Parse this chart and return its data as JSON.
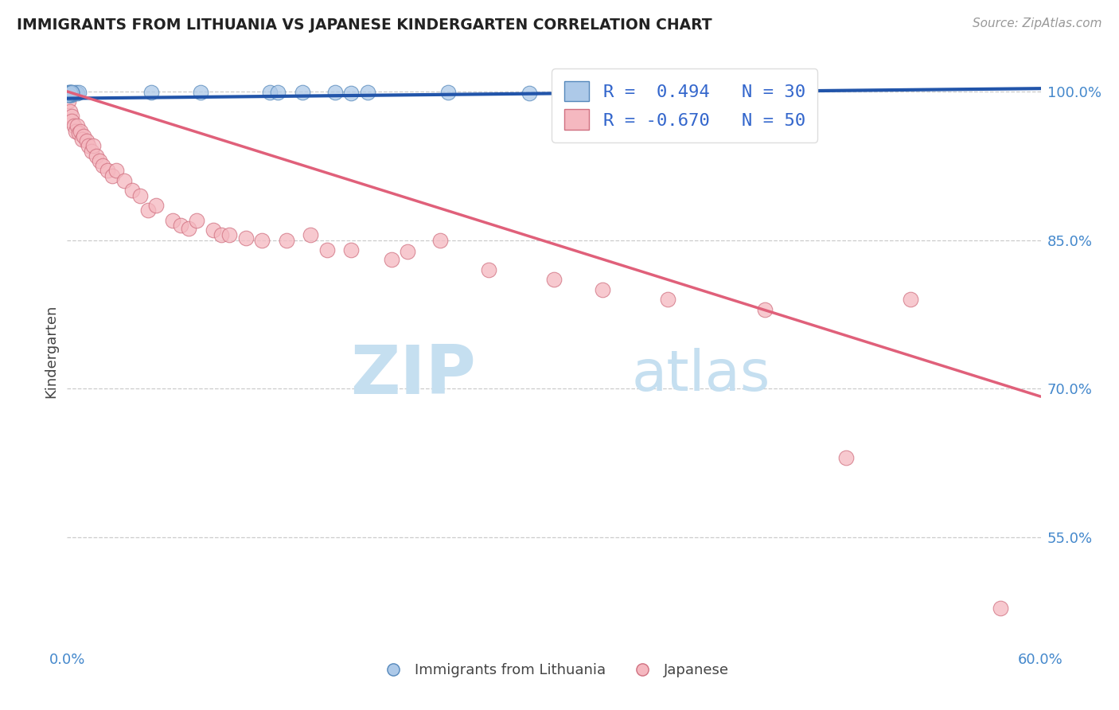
{
  "title": "IMMIGRANTS FROM LITHUANIA VS JAPANESE KINDERGARTEN CORRELATION CHART",
  "source_text": "Source: ZipAtlas.com",
  "ylabel": "Kindergarten",
  "x_min": 0.0,
  "x_max": 0.6,
  "y_min": 0.44,
  "y_max": 1.035,
  "y_ticks": [
    0.55,
    0.7,
    0.85,
    1.0
  ],
  "y_tick_labels": [
    "55.0%",
    "70.0%",
    "85.0%",
    "100.0%"
  ],
  "x_ticks": [
    0.0,
    0.1,
    0.2,
    0.3,
    0.4,
    0.5,
    0.6
  ],
  "x_tick_labels": [
    "0.0%",
    "",
    "",
    "",
    "",
    "",
    "60.0%"
  ],
  "legend_r1": "R =  0.494   N = 30",
  "legend_r2": "R = -0.670   N = 50",
  "series1_color": "#adc9e8",
  "series1_edge": "#5588bb",
  "series2_color": "#f5b8c0",
  "series2_edge": "#d07080",
  "trendline1_color": "#2255aa",
  "trendline2_color": "#e0607a",
  "watermark_zip": "ZIP",
  "watermark_atlas": "atlas",
  "watermark_color_zip": "#c5dff0",
  "watermark_color_atlas": "#c5dff0",
  "background_color": "#ffffff",
  "blue_scatter_x": [
    0.001,
    0.001,
    0.002,
    0.002,
    0.003,
    0.003,
    0.004,
    0.005,
    0.006,
    0.007,
    0.002,
    0.001,
    0.003,
    0.002,
    0.001,
    0.003,
    0.002,
    0.001,
    0.002,
    0.003,
    0.052,
    0.082,
    0.125,
    0.175,
    0.235,
    0.285,
    0.185,
    0.165,
    0.145,
    0.13
  ],
  "blue_scatter_y": [
    0.999,
    0.998,
    0.999,
    0.997,
    0.998,
    0.997,
    0.998,
    0.999,
    0.998,
    0.999,
    0.997,
    0.998,
    0.999,
    0.998,
    0.997,
    0.998,
    0.999,
    0.997,
    0.998,
    0.999,
    0.999,
    0.999,
    0.999,
    0.998,
    0.999,
    0.998,
    0.999,
    0.999,
    0.999,
    0.999
  ],
  "pink_scatter_x": [
    0.001,
    0.002,
    0.003,
    0.003,
    0.004,
    0.005,
    0.006,
    0.007,
    0.008,
    0.009,
    0.01,
    0.012,
    0.013,
    0.015,
    0.016,
    0.018,
    0.02,
    0.022,
    0.025,
    0.028,
    0.03,
    0.035,
    0.04,
    0.045,
    0.05,
    0.055,
    0.065,
    0.07,
    0.075,
    0.08,
    0.09,
    0.095,
    0.1,
    0.11,
    0.12,
    0.135,
    0.15,
    0.16,
    0.175,
    0.2,
    0.21,
    0.23,
    0.26,
    0.3,
    0.33,
    0.37,
    0.43,
    0.48,
    0.52,
    0.575
  ],
  "pink_scatter_y": [
    0.99,
    0.98,
    0.975,
    0.97,
    0.965,
    0.96,
    0.965,
    0.958,
    0.96,
    0.952,
    0.955,
    0.95,
    0.945,
    0.94,
    0.945,
    0.935,
    0.93,
    0.925,
    0.92,
    0.915,
    0.92,
    0.91,
    0.9,
    0.895,
    0.88,
    0.885,
    0.87,
    0.865,
    0.862,
    0.87,
    0.86,
    0.855,
    0.855,
    0.852,
    0.85,
    0.85,
    0.855,
    0.84,
    0.84,
    0.83,
    0.838,
    0.85,
    0.82,
    0.81,
    0.8,
    0.79,
    0.78,
    0.63,
    0.79,
    0.478
  ],
  "trendline1_x": [
    0.0,
    0.6
  ],
  "trendline1_y": [
    0.993,
    1.003
  ],
  "trendline2_x": [
    0.0,
    0.6
  ],
  "trendline2_y": [
    1.0,
    0.692
  ]
}
